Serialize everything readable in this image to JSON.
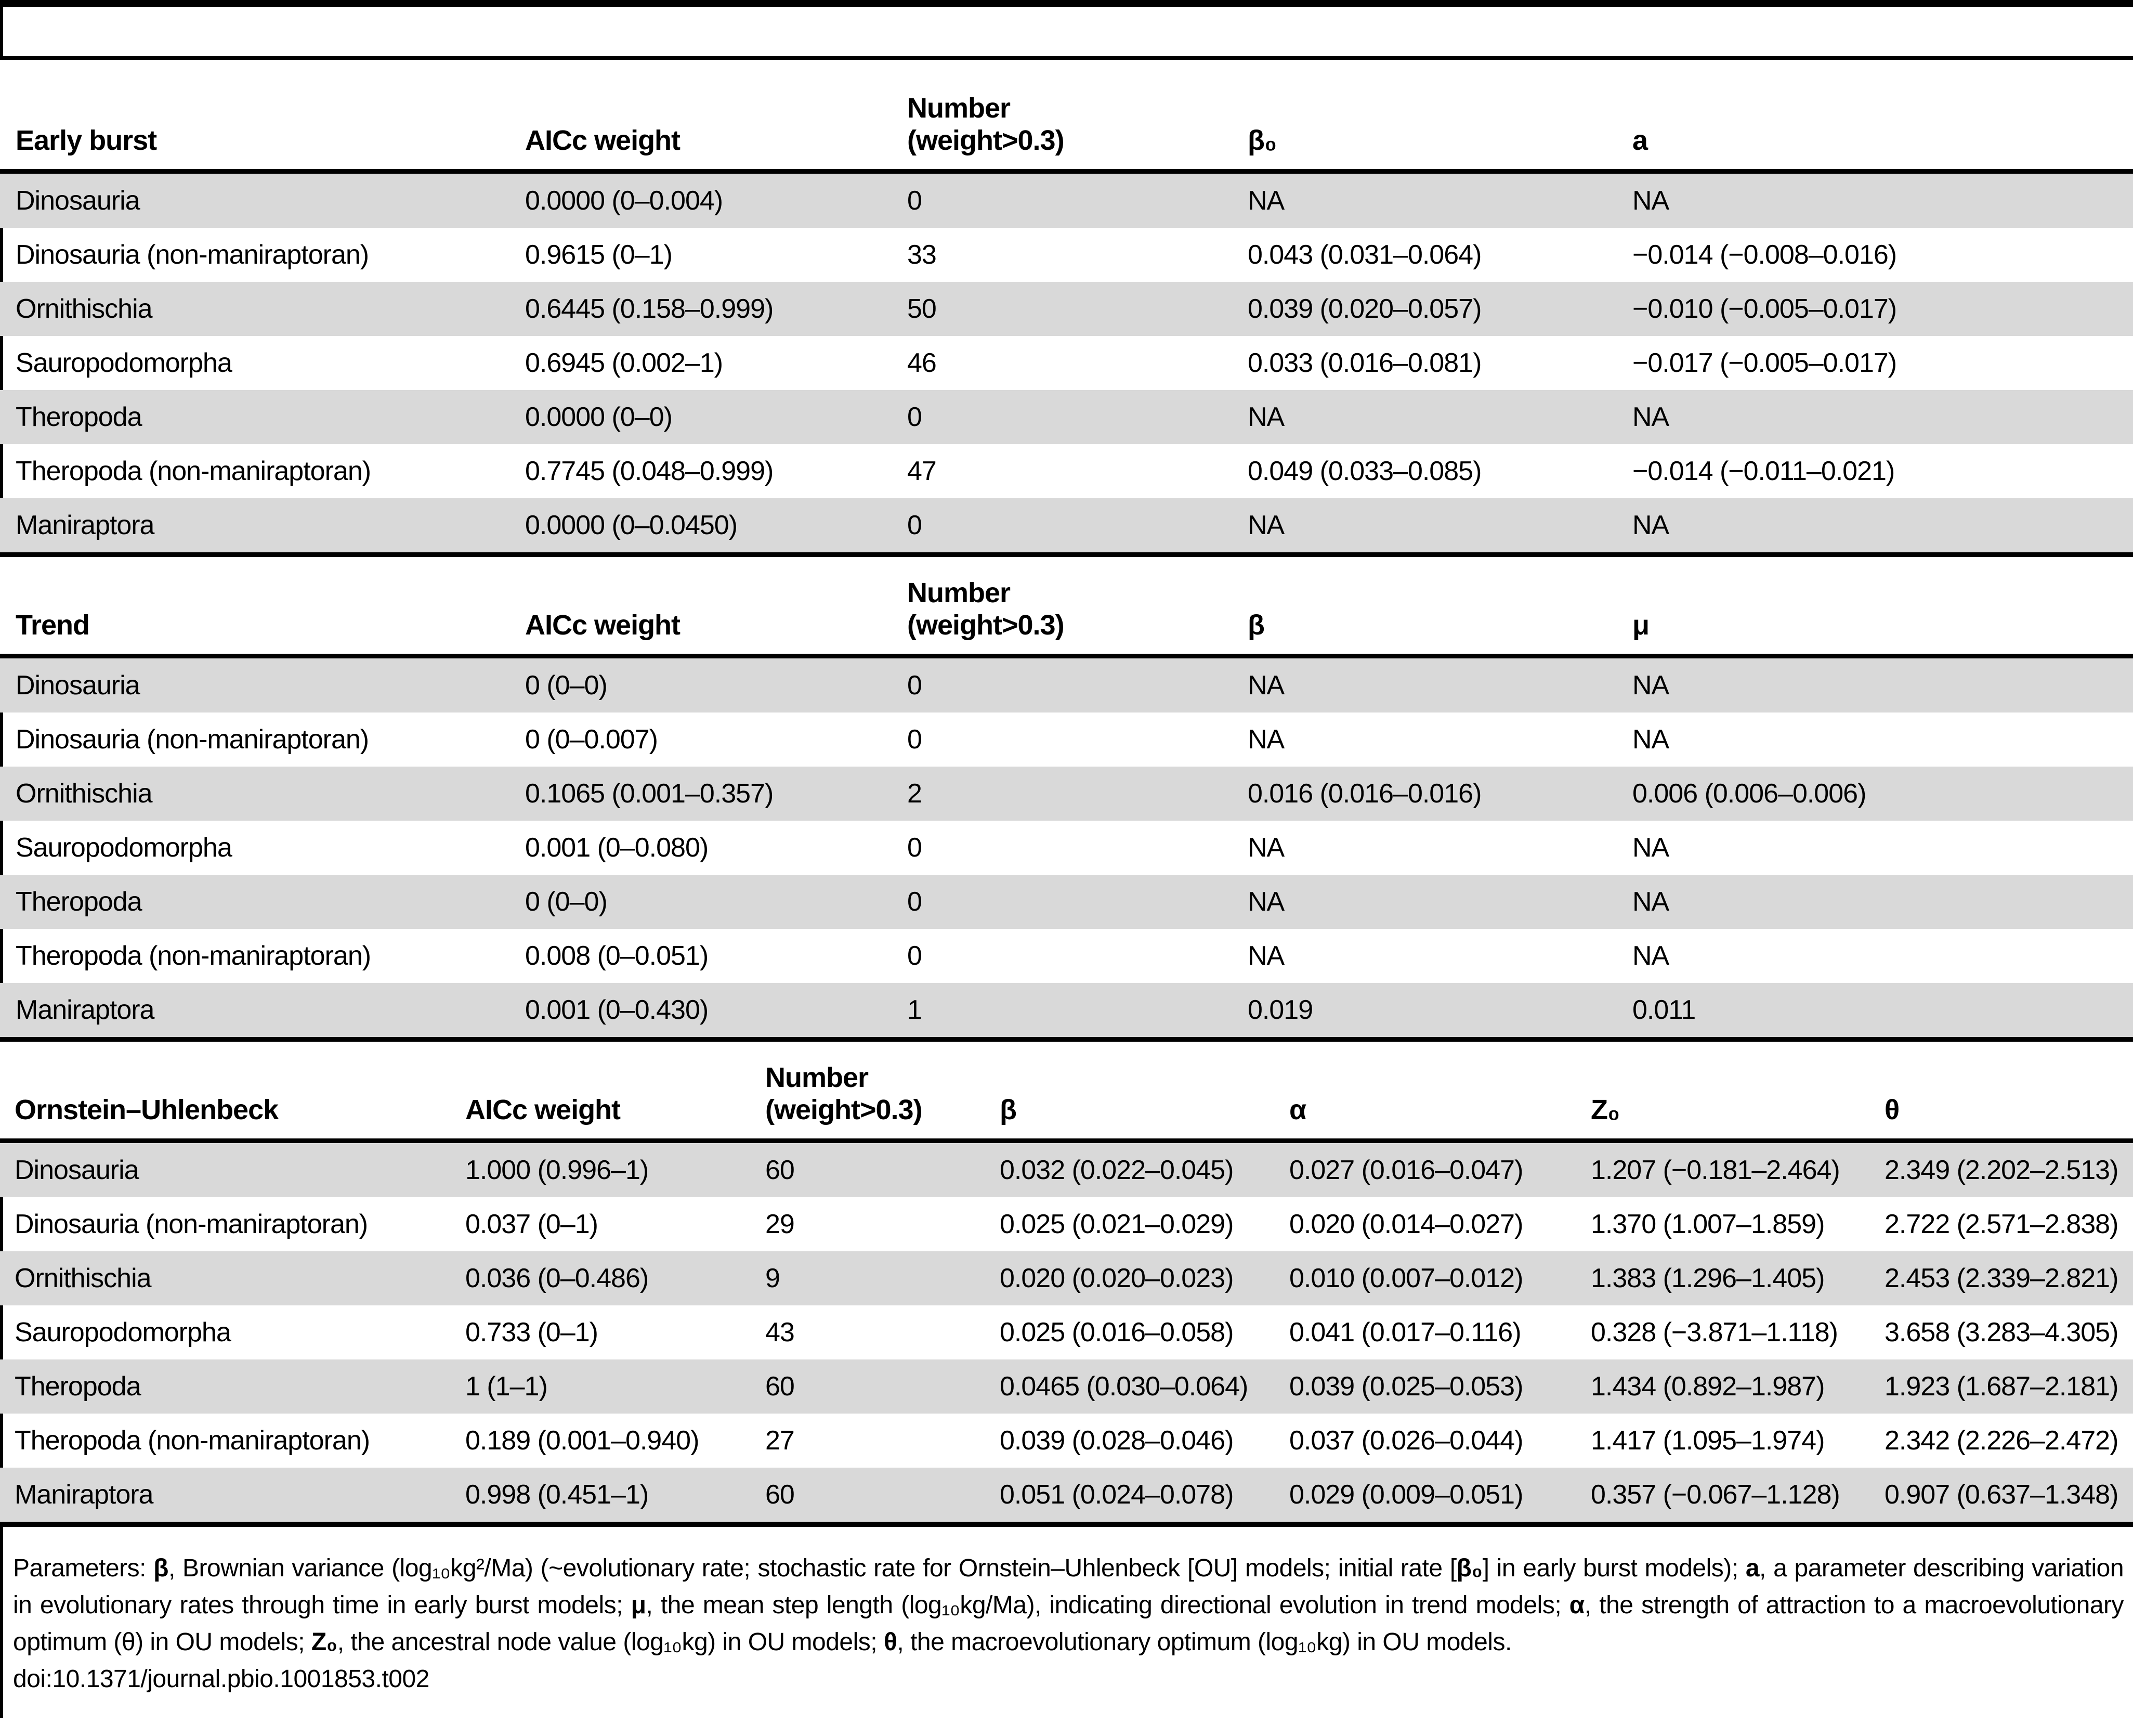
{
  "tables": [
    {
      "name": "early-burst",
      "columns": [
        "Early burst",
        "AICc weight",
        "Number\n(weight>0.3)",
        "β₀",
        "a"
      ],
      "rows": [
        [
          "Dinosauria",
          "0.0000 (0–0.004)",
          "0",
          "NA",
          "NA"
        ],
        [
          "Dinosauria (non-maniraptoran)",
          "0.9615 (0–1)",
          "33",
          "0.043 (0.031–0.064)",
          "−0.014 (−0.008–0.016)"
        ],
        [
          "Ornithischia",
          "0.6445 (0.158–0.999)",
          "50",
          "0.039 (0.020–0.057)",
          "−0.010 (−0.005–0.017)"
        ],
        [
          "Sauropodomorpha",
          "0.6945 (0.002–1)",
          "46",
          "0.033 (0.016–0.081)",
          "−0.017 (−0.005–0.017)"
        ],
        [
          "Theropoda",
          "0.0000 (0–0)",
          "0",
          "NA",
          "NA"
        ],
        [
          "Theropoda (non-maniraptoran)",
          "0.7745 (0.048–0.999)",
          "47",
          "0.049 (0.033–0.085)",
          "−0.014 (−0.011–0.021)"
        ],
        [
          "Maniraptora",
          "0.0000 (0–0.0450)",
          "0",
          "NA",
          "NA"
        ]
      ]
    },
    {
      "name": "trend",
      "columns": [
        "Trend",
        "AICc weight",
        "Number\n(weight>0.3)",
        "β",
        "μ"
      ],
      "rows": [
        [
          "Dinosauria",
          "0 (0–0)",
          "0",
          "NA",
          "NA"
        ],
        [
          "Dinosauria (non-maniraptoran)",
          "0 (0–0.007)",
          "0",
          "NA",
          "NA"
        ],
        [
          "Ornithischia",
          "0.1065 (0.001–0.357)",
          "2",
          "0.016 (0.016–0.016)",
          "0.006 (0.006–0.006)"
        ],
        [
          "Sauropodomorpha",
          "0.001 (0–0.080)",
          "0",
          "NA",
          "NA"
        ],
        [
          "Theropoda",
          "0 (0–0)",
          "0",
          "NA",
          "NA"
        ],
        [
          "Theropoda (non-maniraptoran)",
          "0.008 (0–0.051)",
          "0",
          "NA",
          "NA"
        ],
        [
          "Maniraptora",
          "0.001 (0–0.430)",
          "1",
          "0.019",
          "0.011"
        ]
      ]
    },
    {
      "name": "ornstein-uhlenbeck",
      "columns": [
        "Ornstein–Uhlenbeck",
        "AICc weight",
        "Number\n(weight>0.3)",
        "β",
        "α",
        "Z₀",
        "θ"
      ],
      "rows": [
        [
          "Dinosauria",
          "1.000 (0.996–1)",
          "60",
          "0.032 (0.022–0.045)",
          "0.027 (0.016–0.047)",
          "1.207 (−0.181–2.464)",
          "2.349 (2.202–2.513)"
        ],
        [
          "Dinosauria (non-maniraptoran)",
          "0.037 (0–1)",
          "29",
          "0.025 (0.021–0.029)",
          "0.020 (0.014–0.027)",
          "1.370 (1.007–1.859)",
          "2.722 (2.571–2.838)"
        ],
        [
          "Ornithischia",
          "0.036 (0–0.486)",
          "9",
          "0.020 (0.020–0.023)",
          "0.010 (0.007–0.012)",
          "1.383 (1.296–1.405)",
          "2.453 (2.339–2.821)"
        ],
        [
          "Sauropodomorpha",
          "0.733 (0–1)",
          "43",
          "0.025 (0.016–0.058)",
          "0.041 (0.017–0.116)",
          "0.328 (−3.871–1.118)",
          "3.658 (3.283–4.305)"
        ],
        [
          "Theropoda",
          "1 (1–1)",
          "60",
          "0.0465 (0.030–0.064)",
          "0.039 (0.025–0.053)",
          "1.434 (0.892–1.987)",
          "1.923 (1.687–2.181)"
        ],
        [
          "Theropoda (non-maniraptoran)",
          "0.189 (0.001–0.940)",
          "27",
          "0.039 (0.028–0.046)",
          "0.037 (0.026–0.044)",
          "1.417 (1.095–1.974)",
          "2.342 (2.226–2.472)"
        ],
        [
          "Maniraptora",
          "0.998 (0.451–1)",
          "60",
          "0.051 (0.024–0.078)",
          "0.029 (0.009–0.051)",
          "0.357 (−0.067–1.128)",
          "0.907 (0.637–1.348)"
        ]
      ]
    }
  ],
  "footnote": {
    "segments": [
      {
        "t": "Parameters: "
      },
      {
        "t": "β",
        "b": true
      },
      {
        "t": ", Brownian variance (log₁₀kg²/Ma) (~evolutionary rate; stochastic rate for Ornstein–Uhlenbeck [OU] models; initial rate ["
      },
      {
        "t": "β₀",
        "b": true
      },
      {
        "t": "] in early burst models); "
      },
      {
        "t": "a",
        "b": true
      },
      {
        "t": ", a parameter describing variation in evolutionary rates through time in early burst models; "
      },
      {
        "t": "μ",
        "b": true
      },
      {
        "t": ", the mean step length (log₁₀kg/Ma), indicating directional evolution in trend models; "
      },
      {
        "t": "α",
        "b": true
      },
      {
        "t": ", the strength of attraction to a macroevolutionary optimum (θ) in OU models; "
      },
      {
        "t": "Z₀",
        "b": true
      },
      {
        "t": ", the ancestral node value (log₁₀kg) in OU models; "
      },
      {
        "t": "θ",
        "b": true
      },
      {
        "t": ", the macroevolutionary optimum (log₁₀kg) in OU models."
      }
    ],
    "doi": "doi:10.1371/journal.pbio.1001853.t002"
  },
  "colors": {
    "stripe": "#d9d9d9",
    "rule": "#000000",
    "background": "#ffffff"
  }
}
